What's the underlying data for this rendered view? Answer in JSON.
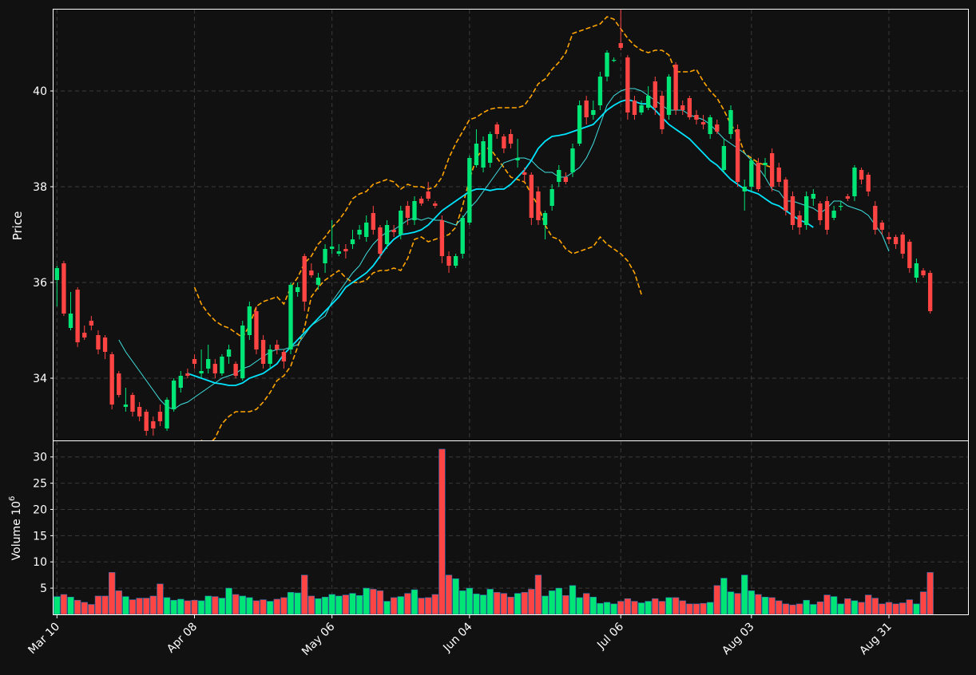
{
  "theme": {
    "background": "#111111",
    "grid": "#3a3a3a",
    "frame": "#ffffff",
    "up": "#00e676",
    "down": "#ff4444",
    "ma_fast": "#40e0e0",
    "ma_slow": "#00e5ff",
    "bands": "#ffa500"
  },
  "chart_data": {
    "type": "candlestick",
    "price_axis": {
      "label": "Price",
      "ylim": [
        32.7,
        41.7
      ],
      "ticks": [
        34,
        36,
        38,
        40
      ],
      "tick_labels": [
        "34",
        "36",
        "38",
        "40"
      ]
    },
    "volume_axis": {
      "label": "Volume  10",
      "label_exponent": "6",
      "ylim": [
        0,
        33
      ],
      "ticks": [
        5,
        10,
        15,
        20,
        25,
        30
      ],
      "tick_labels": [
        "5",
        "10",
        "15",
        "20",
        "25",
        "30"
      ]
    },
    "x_ticks": [
      {
        "index": 0,
        "label": "Mar 10"
      },
      {
        "index": 20,
        "label": "Apr 08"
      },
      {
        "index": 40,
        "label": "May 06"
      },
      {
        "index": 60,
        "label": "Jun 04"
      },
      {
        "index": 82,
        "label": "Jul 06"
      },
      {
        "index": 101,
        "label": "Aug 03"
      },
      {
        "index": 121,
        "label": "Aug 31"
      }
    ],
    "grid": true,
    "candles": [
      [
        36.05,
        36.3,
        36.35,
        35.5,
        3.4
      ],
      [
        36.4,
        35.35,
        36.45,
        35.3,
        3.8
      ],
      [
        35.05,
        35.35,
        35.8,
        35.0,
        3.3
      ],
      [
        35.85,
        34.75,
        35.9,
        34.65,
        2.7
      ],
      [
        34.95,
        34.85,
        35.1,
        34.8,
        2.3
      ],
      [
        35.2,
        35.1,
        35.3,
        35.0,
        1.9
      ],
      [
        34.9,
        34.6,
        35.0,
        34.5,
        3.5
      ],
      [
        34.85,
        34.55,
        34.9,
        34.4,
        3.5
      ],
      [
        34.5,
        33.45,
        34.55,
        33.35,
        8.0
      ],
      [
        34.1,
        33.65,
        34.15,
        33.6,
        4.5
      ],
      [
        33.4,
        33.45,
        33.8,
        33.3,
        3.4
      ],
      [
        33.65,
        33.3,
        33.7,
        33.2,
        2.8
      ],
      [
        33.4,
        33.2,
        33.5,
        33.1,
        3.1
      ],
      [
        33.3,
        32.9,
        33.35,
        32.8,
        3.1
      ],
      [
        33.1,
        32.95,
        33.2,
        32.8,
        3.5
      ],
      [
        33.3,
        33.1,
        33.45,
        33.0,
        5.8
      ],
      [
        32.95,
        33.55,
        33.6,
        32.9,
        3.2
      ],
      [
        33.35,
        33.95,
        34.0,
        33.3,
        2.7
      ],
      [
        33.8,
        34.05,
        34.15,
        33.7,
        2.9
      ],
      [
        34.1,
        34.05,
        34.2,
        34.0,
        2.6
      ],
      [
        34.4,
        34.3,
        34.5,
        34.2,
        2.7
      ],
      [
        34.1,
        34.15,
        34.6,
        34.0,
        2.6
      ],
      [
        34.2,
        34.4,
        34.7,
        34.1,
        3.5
      ],
      [
        34.3,
        34.1,
        34.4,
        34.0,
        3.4
      ],
      [
        34.1,
        34.45,
        34.5,
        34.05,
        3.1
      ],
      [
        34.45,
        34.6,
        34.7,
        34.3,
        5.0
      ],
      [
        34.3,
        34.05,
        34.35,
        34.0,
        3.8
      ],
      [
        34.0,
        35.1,
        35.2,
        33.95,
        3.5
      ],
      [
        34.9,
        35.5,
        35.6,
        34.8,
        3.2
      ],
      [
        35.4,
        34.6,
        35.5,
        34.5,
        2.6
      ],
      [
        34.8,
        34.3,
        34.9,
        34.2,
        2.8
      ],
      [
        34.3,
        34.6,
        34.7,
        34.2,
        2.5
      ],
      [
        34.7,
        34.6,
        34.8,
        34.5,
        2.9
      ],
      [
        34.55,
        34.35,
        34.6,
        34.2,
        3.2
      ],
      [
        34.6,
        35.95,
        36.0,
        34.5,
        4.2
      ],
      [
        35.8,
        35.9,
        36.0,
        35.7,
        4.1
      ],
      [
        36.55,
        35.6,
        36.6,
        35.4,
        7.5
      ],
      [
        36.25,
        36.15,
        36.4,
        36.1,
        3.5
      ],
      [
        35.95,
        36.1,
        36.2,
        35.85,
        3.0
      ],
      [
        36.4,
        36.7,
        36.8,
        36.2,
        3.3
      ],
      [
        36.7,
        36.75,
        37.3,
        36.6,
        3.8
      ],
      [
        36.6,
        36.65,
        36.8,
        36.55,
        3.5
      ],
      [
        36.7,
        36.65,
        36.8,
        36.5,
        3.7
      ],
      [
        36.8,
        36.9,
        37.1,
        36.7,
        4.0
      ],
      [
        37.0,
        37.1,
        37.2,
        36.9,
        3.6
      ],
      [
        36.95,
        37.25,
        37.4,
        36.85,
        5.0
      ],
      [
        37.45,
        37.1,
        37.6,
        37.0,
        4.8
      ],
      [
        37.15,
        36.6,
        37.2,
        36.5,
        4.5
      ],
      [
        36.8,
        37.2,
        37.3,
        36.7,
        2.5
      ],
      [
        37.1,
        37.05,
        37.2,
        36.95,
        3.2
      ],
      [
        37.0,
        37.5,
        37.6,
        36.9,
        3.4
      ],
      [
        37.6,
        37.35,
        37.7,
        37.2,
        4.0
      ],
      [
        37.3,
        37.7,
        37.8,
        37.2,
        4.7
      ],
      [
        37.75,
        37.65,
        37.8,
        37.6,
        3.1
      ],
      [
        37.9,
        37.75,
        38.1,
        37.7,
        3.2
      ],
      [
        37.65,
        37.6,
        37.7,
        37.55,
        3.8
      ],
      [
        37.3,
        36.55,
        37.4,
        36.4,
        31.5
      ],
      [
        36.55,
        36.35,
        36.65,
        36.2,
        7.5
      ],
      [
        36.35,
        36.55,
        36.6,
        36.3,
        6.8
      ],
      [
        36.6,
        37.35,
        37.4,
        36.5,
        4.5
      ],
      [
        37.25,
        38.6,
        38.65,
        37.2,
        5.0
      ],
      [
        38.45,
        38.9,
        39.2,
        38.4,
        3.9
      ],
      [
        38.4,
        38.95,
        39.05,
        38.3,
        3.7
      ],
      [
        38.5,
        39.1,
        39.15,
        38.4,
        4.8
      ],
      [
        39.3,
        39.1,
        39.35,
        39.0,
        4.2
      ],
      [
        39.05,
        38.8,
        39.1,
        38.7,
        4.0
      ],
      [
        39.1,
        38.9,
        39.2,
        38.8,
        3.3
      ],
      [
        38.55,
        38.6,
        39.0,
        38.4,
        4.0
      ],
      [
        38.3,
        38.25,
        38.4,
        38.1,
        4.2
      ],
      [
        38.25,
        37.35,
        38.3,
        37.2,
        4.8
      ],
      [
        37.9,
        37.3,
        38.0,
        37.2,
        7.5
      ],
      [
        37.2,
        37.45,
        37.5,
        36.9,
        3.5
      ],
      [
        37.6,
        37.95,
        38.05,
        37.5,
        4.5
      ],
      [
        38.1,
        38.35,
        38.45,
        38.0,
        5.0
      ],
      [
        38.2,
        38.1,
        38.3,
        38.05,
        3.6
      ],
      [
        38.3,
        38.8,
        38.9,
        38.2,
        5.5
      ],
      [
        38.9,
        39.7,
        39.8,
        38.85,
        3.2
      ],
      [
        39.8,
        39.45,
        39.9,
        39.3,
        4.0
      ],
      [
        39.5,
        39.6,
        39.8,
        39.4,
        3.3
      ],
      [
        39.7,
        40.3,
        40.4,
        39.6,
        2.1
      ],
      [
        40.3,
        40.8,
        40.85,
        40.2,
        2.3
      ],
      [
        40.65,
        40.65,
        40.7,
        40.6,
        2.0
      ],
      [
        41.0,
        40.9,
        41.7,
        40.85,
        2.5
      ],
      [
        40.7,
        39.55,
        40.75,
        39.4,
        3.0
      ],
      [
        39.8,
        39.5,
        39.9,
        39.4,
        2.5
      ],
      [
        39.55,
        39.7,
        39.8,
        39.5,
        2.2
      ],
      [
        39.65,
        39.9,
        40.1,
        39.6,
        2.5
      ],
      [
        40.2,
        39.65,
        40.3,
        39.5,
        3.0
      ],
      [
        39.9,
        39.2,
        40.0,
        39.1,
        2.5
      ],
      [
        39.5,
        40.3,
        40.35,
        39.4,
        3.2
      ],
      [
        40.55,
        39.6,
        40.6,
        39.5,
        3.2
      ],
      [
        39.7,
        39.6,
        39.8,
        39.5,
        2.6
      ],
      [
        39.85,
        39.45,
        39.9,
        39.4,
        2.0
      ],
      [
        39.5,
        39.4,
        39.6,
        39.3,
        2.0
      ],
      [
        39.35,
        39.3,
        39.5,
        39.2,
        2.1
      ],
      [
        39.1,
        39.45,
        39.5,
        39.0,
        2.3
      ],
      [
        39.3,
        39.15,
        39.4,
        39.1,
        5.5
      ],
      [
        38.35,
        38.85,
        39.0,
        38.3,
        6.9
      ],
      [
        39.1,
        39.6,
        39.7,
        39.0,
        4.3
      ],
      [
        39.2,
        38.1,
        39.3,
        38.0,
        4.0
      ],
      [
        37.9,
        38.0,
        38.15,
        37.5,
        7.5
      ],
      [
        38.0,
        38.55,
        38.6,
        37.9,
        4.5
      ],
      [
        38.5,
        37.95,
        38.6,
        37.9,
        3.8
      ],
      [
        38.45,
        38.5,
        38.6,
        38.2,
        3.3
      ],
      [
        38.7,
        38.0,
        38.8,
        37.9,
        3.2
      ],
      [
        38.4,
        38.1,
        38.5,
        38.0,
        2.6
      ],
      [
        38.15,
        37.5,
        38.2,
        37.4,
        2.0
      ],
      [
        37.8,
        37.2,
        37.9,
        37.1,
        1.8
      ],
      [
        37.4,
        37.15,
        37.5,
        37.0,
        2.0
      ],
      [
        37.2,
        37.8,
        37.9,
        37.1,
        2.7
      ],
      [
        37.75,
        37.85,
        37.95,
        37.6,
        1.9
      ],
      [
        37.65,
        37.3,
        37.7,
        37.2,
        2.4
      ],
      [
        37.7,
        37.1,
        37.8,
        37.0,
        3.7
      ],
      [
        37.35,
        37.5,
        37.6,
        37.3,
        3.4
      ],
      [
        37.6,
        37.6,
        37.7,
        37.5,
        2.0
      ],
      [
        37.8,
        37.75,
        37.85,
        37.7,
        3.0
      ],
      [
        37.8,
        38.4,
        38.45,
        37.7,
        2.6
      ],
      [
        38.35,
        38.15,
        38.4,
        38.05,
        2.3
      ],
      [
        38.25,
        37.9,
        38.3,
        37.8,
        3.7
      ],
      [
        37.6,
        37.1,
        37.7,
        37.0,
        3.1
      ],
      [
        37.25,
        37.1,
        37.3,
        37.0,
        2.0
      ],
      [
        36.95,
        36.9,
        37.05,
        36.8,
        2.3
      ],
      [
        36.95,
        36.8,
        37.0,
        36.7,
        2.0
      ],
      [
        37.0,
        36.6,
        37.05,
        36.5,
        2.2
      ],
      [
        36.85,
        36.3,
        36.9,
        36.2,
        2.8
      ],
      [
        36.1,
        36.4,
        36.5,
        36.0,
        2.0
      ],
      [
        36.25,
        36.15,
        36.3,
        36.1,
        4.3
      ],
      [
        36.2,
        35.4,
        36.25,
        35.35,
        8.0
      ]
    ],
    "ma_fast_start": 9,
    "ma_fast": [
      34.8,
      34.55,
      34.35,
      34.15,
      33.95,
      33.75,
      33.55,
      33.4,
      33.35,
      33.45,
      33.5,
      33.6,
      33.7,
      33.8,
      33.9,
      34.0,
      34.05,
      34.1,
      34.2,
      34.25,
      34.35,
      34.45,
      34.55,
      34.6,
      34.6,
      34.65,
      34.7,
      34.9,
      35.1,
      35.2,
      35.3,
      35.6,
      35.8,
      36.0,
      36.2,
      36.35,
      36.6,
      36.8,
      36.95,
      37.05,
      37.1,
      37.2,
      37.3,
      37.35,
      37.3,
      37.35,
      37.3,
      37.3,
      37.25,
      37.2,
      37.35,
      37.55,
      37.7,
      37.9,
      38.1,
      38.3,
      38.5,
      38.55,
      38.6,
      38.6,
      38.55,
      38.4,
      38.3,
      38.3,
      38.2,
      38.2,
      38.3,
      38.4,
      38.6,
      38.9,
      39.3,
      39.7,
      39.9,
      40.0,
      40.05,
      40.05,
      40.0,
      39.9,
      39.8,
      39.7,
      39.6,
      39.6,
      39.6,
      39.5,
      39.45,
      39.4,
      39.3,
      39.15,
      39.0,
      38.9,
      38.8,
      38.7,
      38.55,
      38.4,
      38.2,
      37.95,
      37.9,
      37.7,
      37.7,
      37.65,
      37.6,
      37.55,
      37.45,
      37.55,
      37.7,
      37.7,
      37.6,
      37.55,
      37.5,
      37.4,
      37.2,
      37.0,
      36.65
    ],
    "ma_slow_start": 19,
    "ma_slow": [
      34.1,
      34.05,
      34.0,
      33.95,
      33.9,
      33.88,
      33.85,
      33.85,
      33.9,
      34.0,
      34.05,
      34.1,
      34.2,
      34.3,
      34.5,
      34.65,
      34.8,
      34.95,
      35.1,
      35.25,
      35.4,
      35.55,
      35.7,
      35.9,
      36.0,
      36.1,
      36.2,
      36.35,
      36.55,
      36.75,
      36.9,
      37.0,
      37.02,
      37.05,
      37.1,
      37.2,
      37.35,
      37.5,
      37.6,
      37.7,
      37.8,
      37.9,
      37.95,
      37.95,
      37.92,
      37.95,
      37.95,
      38.05,
      38.2,
      38.35,
      38.55,
      38.8,
      38.95,
      39.05,
      39.07,
      39.1,
      39.15,
      39.2,
      39.25,
      39.3,
      39.45,
      39.6,
      39.7,
      39.78,
      39.82,
      39.78,
      39.73,
      39.73,
      39.6,
      39.45,
      39.3,
      39.2,
      39.1,
      39.0,
      38.85,
      38.7,
      38.55,
      38.45,
      38.3,
      38.15,
      38.05,
      37.95,
      37.9,
      37.85,
      37.75,
      37.65,
      37.6,
      37.5,
      37.4,
      37.3,
      37.25,
      37.15
    ],
    "bands_start": 20,
    "upper_band": [
      35.9,
      35.55,
      35.35,
      35.2,
      35.1,
      35.05,
      34.95,
      34.85,
      35.1,
      35.5,
      35.6,
      35.65,
      35.7,
      35.55,
      35.9,
      36.1,
      36.4,
      36.55,
      36.8,
      36.95,
      37.15,
      37.3,
      37.5,
      37.75,
      37.85,
      37.9,
      38.05,
      38.1,
      38.15,
      38.1,
      37.95,
      38.05,
      38.0,
      38.0,
      37.95,
      38.0,
      38.2,
      38.6,
      38.9,
      39.15,
      39.4,
      39.45,
      39.55,
      39.62,
      39.65,
      39.65,
      39.65,
      39.65,
      39.7,
      39.9,
      40.15,
      40.25,
      40.45,
      40.6,
      40.8,
      41.2,
      41.25,
      41.3,
      41.35,
      41.4,
      41.55,
      41.5,
      41.3,
      41.1,
      40.95,
      40.85,
      40.8,
      40.85,
      40.85,
      40.75,
      40.4,
      40.4,
      40.4,
      40.45,
      40.2,
      40.0,
      39.85,
      39.6,
      39.3,
      39.1,
      38.7,
      38.6,
      38.5,
      38.45,
      38.4
    ],
    "lower_band": [
      32.65,
      32.7,
      32.6,
      32.75,
      33.05,
      33.2,
      33.3,
      33.3,
      33.3,
      33.35,
      33.5,
      33.7,
      33.95,
      34.05,
      34.25,
      34.65,
      35.05,
      35.7,
      35.9,
      36.05,
      36.15,
      36.25,
      36.1,
      36.0,
      36.0,
      36.05,
      36.2,
      36.25,
      36.25,
      36.3,
      36.25,
      36.5,
      36.9,
      36.95,
      36.85,
      36.9,
      36.95,
      37.0,
      37.15,
      37.6,
      38.15,
      38.6,
      38.8,
      38.8,
      38.6,
      38.4,
      38.2,
      38.15,
      38.1,
      37.85,
      37.6,
      37.2,
      36.95,
      36.9,
      36.7,
      36.6,
      36.65,
      36.7,
      36.75,
      36.95,
      36.8,
      36.7,
      36.6,
      36.45,
      36.2,
      35.75
    ],
    "x_count": 133
  }
}
